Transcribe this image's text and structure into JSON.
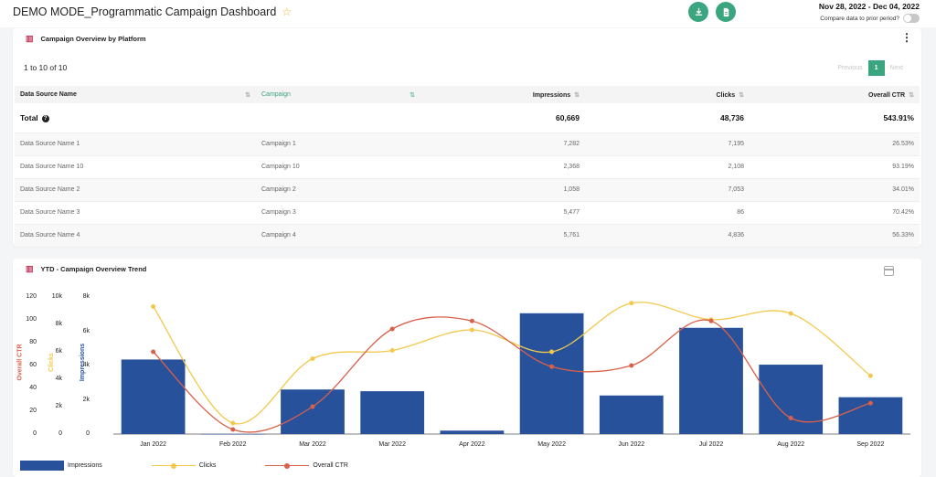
{
  "header": {
    "title": "DEMO MODE_Programmatic Campaign Dashboard",
    "date_range": "Nov 28, 2022 - Dec 04, 2022",
    "compare_label": "Compare data to prior period?"
  },
  "colors": {
    "accent": "#3aa57f",
    "impressions": "#27529b",
    "clicks": "#f2c94c",
    "ctr": "#d9604a",
    "icon_pink": "#c0395a"
  },
  "overview": {
    "title": "Campaign Overview by Platform",
    "range_text": "1 to 10 of 10",
    "pager": {
      "previous": "Previous",
      "page": "1",
      "next": "Next"
    },
    "columns": [
      "Data Source Name",
      "Campaign",
      "Impressions",
      "Clicks",
      "Overall CTR"
    ],
    "total": {
      "label": "Total",
      "impressions": "60,669",
      "clicks": "48,736",
      "ctr": "543.91%"
    },
    "rows": [
      {
        "source": "Data Source Name 1",
        "campaign": "Campaign 1",
        "impressions": "7,282",
        "clicks": "7,195",
        "ctr": "26.53%"
      },
      {
        "source": "Data Source Name 10",
        "campaign": "Campaign 10",
        "impressions": "2,368",
        "clicks": "2,108",
        "ctr": "93.19%"
      },
      {
        "source": "Data Source Name 2",
        "campaign": "Campaign 2",
        "impressions": "1,058",
        "clicks": "7,053",
        "ctr": "34.01%"
      },
      {
        "source": "Data Source Name 3",
        "campaign": "Campaign 3",
        "impressions": "5,477",
        "clicks": "86",
        "ctr": "70.42%"
      },
      {
        "source": "Data Source Name 4",
        "campaign": "Campaign 4",
        "impressions": "5,761",
        "clicks": "4,836",
        "ctr": "56.33%"
      }
    ]
  },
  "trend": {
    "title": "YTD - Campaign Overview Trend",
    "legend": [
      "Impressions",
      "Clicks",
      "Overall CTR"
    ]
  },
  "chart_data": {
    "type": "bar",
    "categories": [
      "Jan 2022",
      "Feb 2022",
      "Mar 2022",
      "Mar 2022",
      "Apr 2022",
      "May 2022",
      "Jun 2022",
      "Jul 2022",
      "Aug 2022",
      "Sep 2022"
    ],
    "series": [
      {
        "name": "Impressions",
        "type": "bar",
        "axis": "Impressions",
        "values": [
          4350,
          0,
          2600,
          2500,
          200,
          7050,
          2250,
          6200,
          4050,
          2150
        ]
      },
      {
        "name": "Clicks",
        "type": "line",
        "axis": "Clicks",
        "values": [
          9300,
          800,
          5500,
          6100,
          7600,
          6000,
          9550,
          8350,
          8800,
          4250
        ]
      },
      {
        "name": "Overall CTR",
        "type": "line",
        "axis": "Overall CTR",
        "values": [
          72,
          4,
          24,
          92,
          99,
          59,
          60,
          99,
          14,
          27
        ]
      }
    ],
    "axes": {
      "ctr": {
        "label": "Overall CTR",
        "ticks": [
          "0",
          "20",
          "40",
          "60",
          "80",
          "100",
          "120"
        ],
        "ylim": [
          0,
          120
        ]
      },
      "clicks": {
        "label": "Clicks",
        "ticks": [
          "0",
          "2k",
          "4k",
          "6k",
          "8k",
          "10k"
        ],
        "ylim": [
          0,
          10000
        ]
      },
      "impressions": {
        "label": "Impressions",
        "ticks": [
          "0",
          "2k",
          "4k",
          "6k",
          "8k"
        ],
        "ylim": [
          0,
          8000
        ]
      }
    },
    "legend_position": "bottom-left",
    "grid": false
  }
}
